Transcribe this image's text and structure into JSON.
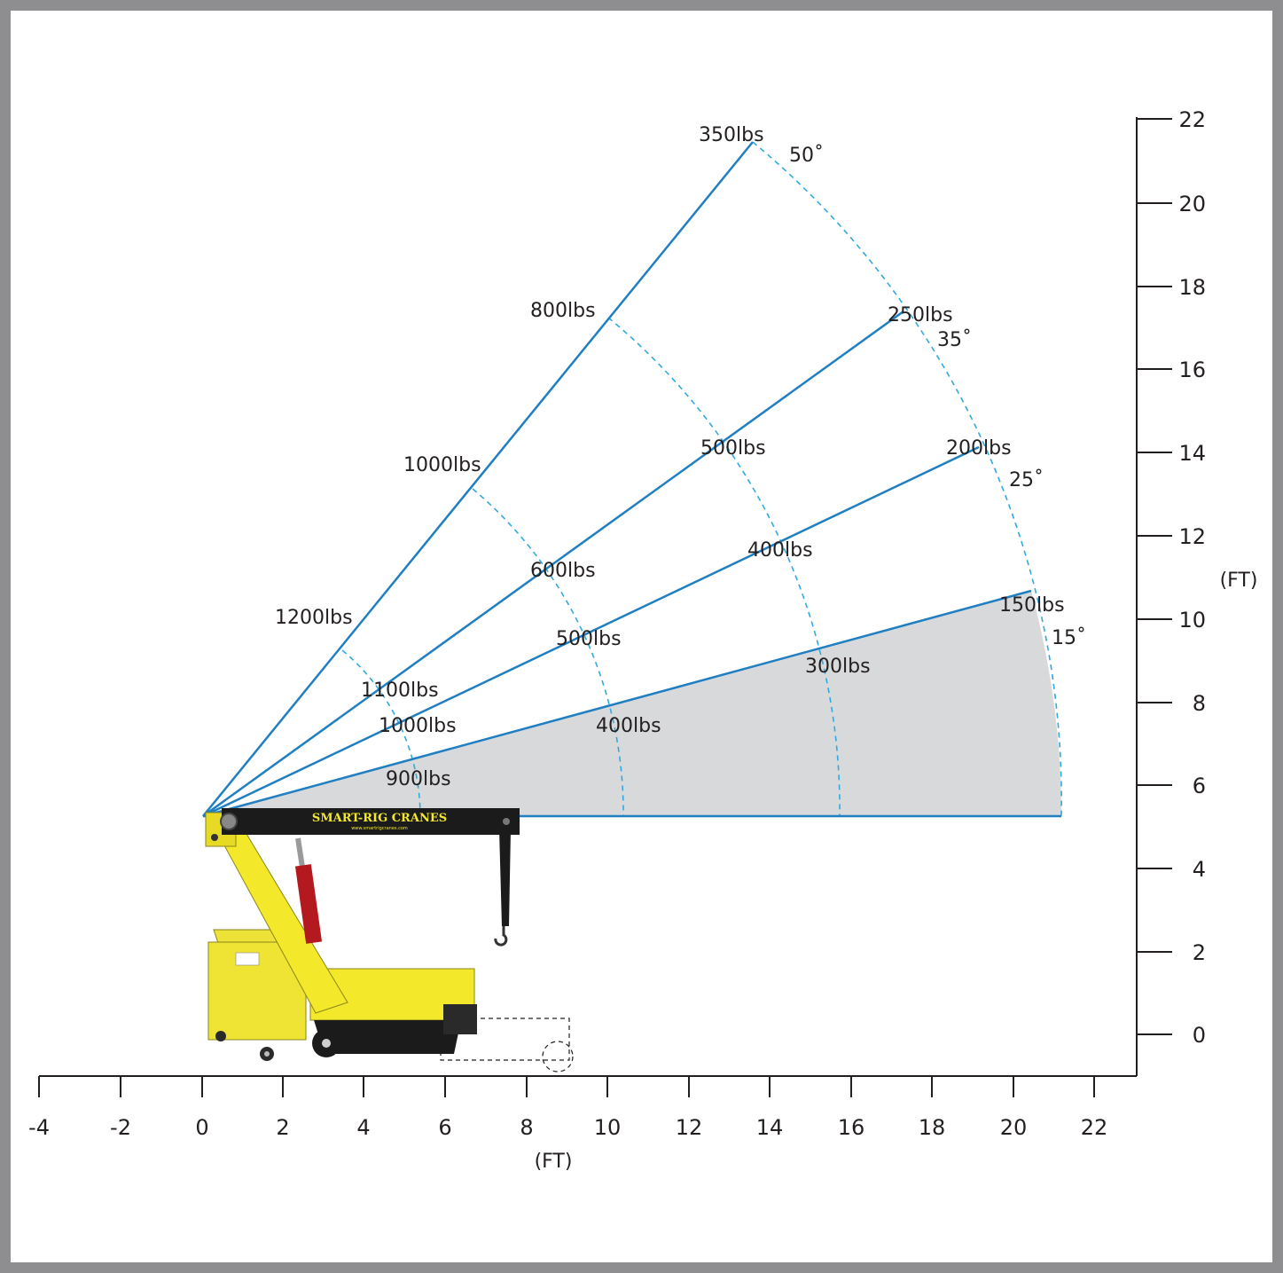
{
  "colors": {
    "border": "#8e8e91",
    "boom_line": "#1f7fc1",
    "arc_dash": "#31a9e0",
    "shaded_area": "#d8d9db",
    "crane_yellow": "#f3e82a",
    "crane_black": "#1b1b1b",
    "cylinder_red": "#b3191f"
  },
  "chart_data": {
    "type": "diagram",
    "x_axis": {
      "unit_label": "(FT)",
      "ticks": [
        "-4",
        "-2",
        "0",
        "2",
        "4",
        "6",
        "8",
        "10",
        "12",
        "14",
        "16",
        "18",
        "20",
        "22"
      ]
    },
    "y_axis": {
      "unit_label": "(FT)",
      "ticks": [
        "0",
        "2",
        "4",
        "6",
        "8",
        "10",
        "12",
        "14",
        "16",
        "18",
        "20",
        "22"
      ]
    },
    "booms": [
      {
        "angle": "50˚",
        "capacities": [
          "1200lbs",
          "1000lbs",
          "800lbs",
          "350lbs"
        ]
      },
      {
        "angle": "35˚",
        "capacities": [
          "1100lbs",
          "600lbs",
          "500lbs",
          "250lbs"
        ]
      },
      {
        "angle": "25˚",
        "capacities": [
          "1000lbs",
          "500lbs",
          "400lbs",
          "200lbs"
        ]
      },
      {
        "angle": "15˚",
        "capacities": [
          "900lbs",
          "400lbs",
          "300lbs",
          "150lbs"
        ]
      }
    ]
  },
  "crane": {
    "brand": "SMART-RIG CRANES",
    "website": "www.smartrigcranes.com"
  }
}
